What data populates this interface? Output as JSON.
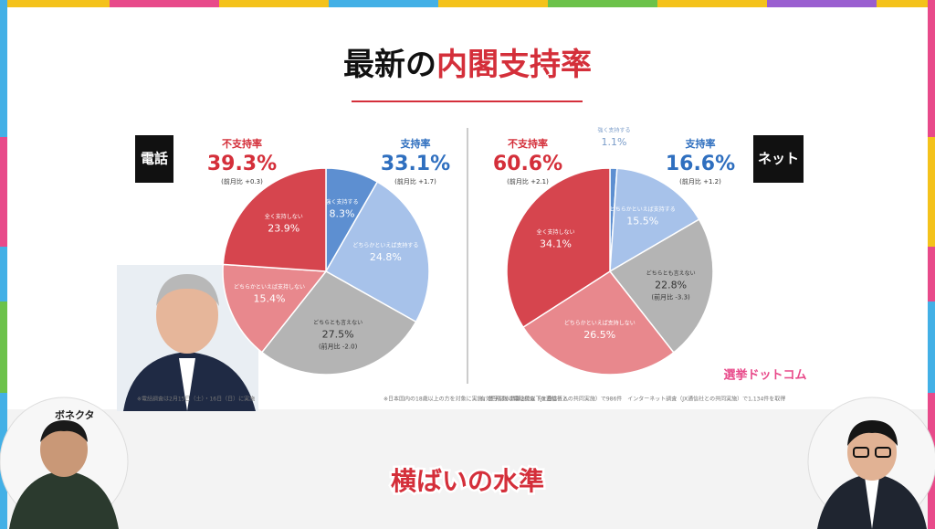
{
  "title_parts": [
    "最新の",
    "内閣支持率"
  ],
  "chart_data": [
    {
      "type": "pie",
      "badge": "電話",
      "categories": [
        "強く支持する",
        "どちらかといえば支持する",
        "どちらとも言えない",
        "どちらかといえば支持しない",
        "全く支持しない"
      ],
      "values": [
        8.3,
        24.8,
        27.5,
        15.4,
        23.9
      ],
      "value_labels": [
        "8.3%",
        "24.8%",
        "27.5%",
        "15.4%",
        "23.9%"
      ],
      "colors": [
        "#5d8fd1",
        "#a7c2ea",
        "#b4b4b4",
        "#e8888d",
        "#d6454e"
      ],
      "slice_notes": [
        null,
        null,
        "(前月比 -2.0)",
        null,
        null
      ],
      "summary": [
        {
          "label": "不支持率",
          "value": "39.3%",
          "change": "(前月比 +0.3)",
          "color": "#d42f3a"
        },
        {
          "label": "支持率",
          "value": "33.1%",
          "change": "(前月比 +1.7)",
          "color": "#2f6fbf"
        }
      ]
    },
    {
      "type": "pie",
      "badge": "ネット",
      "categories": [
        "強く支持する",
        "どちらかといえば支持する",
        "どちらとも言えない",
        "どちらかといえば支持しない",
        "全く支持しない"
      ],
      "values": [
        1.1,
        15.5,
        22.8,
        26.5,
        34.1
      ],
      "value_labels": [
        "1.1%",
        "15.5%",
        "22.8%",
        "26.5%",
        "34.1%"
      ],
      "colors": [
        "#5d8fd1",
        "#a7c2ea",
        "#b4b4b4",
        "#e8888d",
        "#d6454e"
      ],
      "slice_notes": [
        null,
        null,
        "(前月比 -3.3)",
        null,
        null
      ],
      "summary": [
        {
          "label": "不支持率",
          "value": "60.6%",
          "change": "(前月比 +2.1)",
          "color": "#d42f3a"
        },
        {
          "label": "支持率",
          "value": "16.6%",
          "change": "(前月比 +1.2)",
          "color": "#2f6fbf"
        }
      ]
    }
  ],
  "footnotes": [
    "※電話調査は2月15日（土）・16日（日）に実施",
    "※日本国内の18歳以上の方を対象に実施。数字は小数第2位以下を四捨五入",
    "有効回答数は電話調査（JX通信社との共同実施）で986件　インターネット調査（JX通信社との共同実施）で1,134件を取得"
  ],
  "logo": "選挙ドットコム",
  "banner": "ボネクタ",
  "caption": "横ばいの水準"
}
